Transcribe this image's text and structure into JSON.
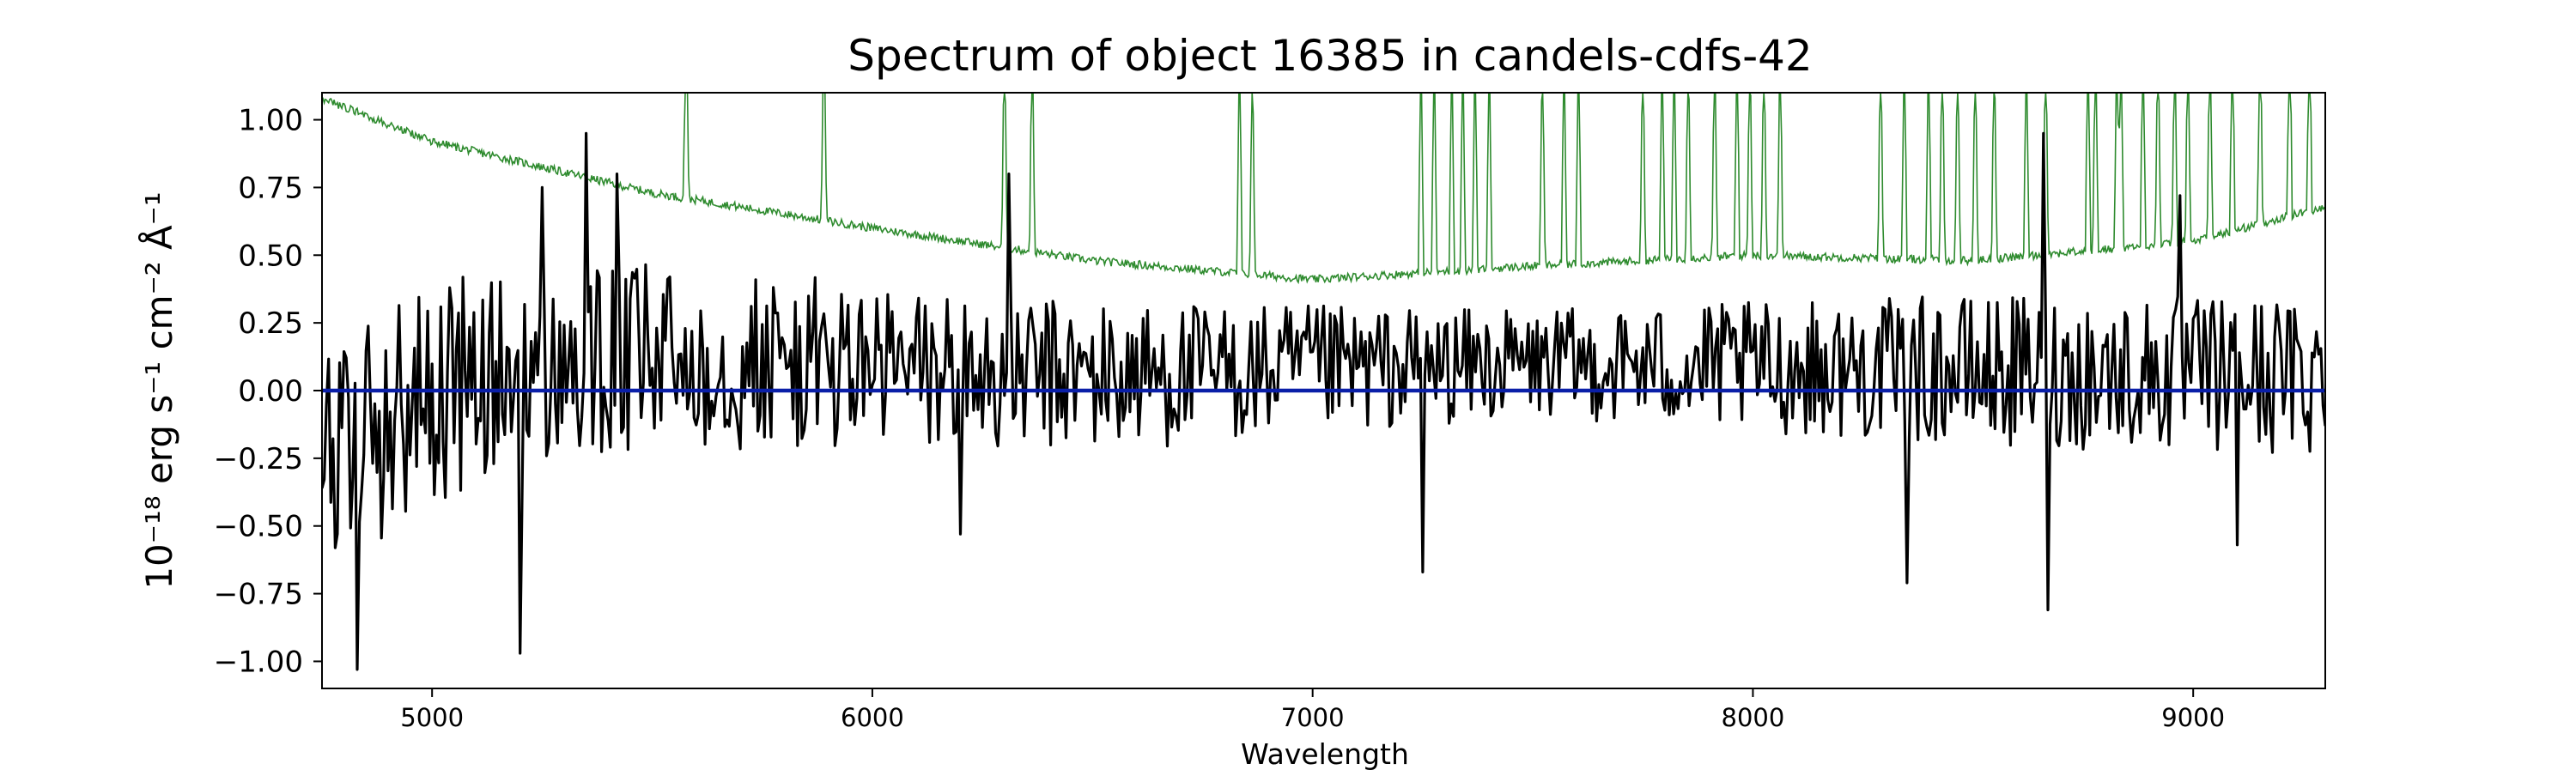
{
  "chart_data": {
    "type": "line",
    "title": "Spectrum of object 16385 in candels-cdfs-42",
    "xlabel": "Wavelength",
    "ylabel": "10⁻¹⁸ erg s⁻¹ cm⁻² Å⁻¹",
    "xlim": [
      4750,
      9300
    ],
    "ylim": [
      -1.1,
      1.1
    ],
    "x_ticks": [
      5000,
      6000,
      7000,
      8000,
      9000
    ],
    "x_tick_labels": [
      "5000",
      "6000",
      "7000",
      "8000",
      "9000"
    ],
    "y_ticks": [
      1.0,
      0.75,
      0.5,
      0.25,
      0.0,
      -0.25,
      -0.5,
      -0.75,
      -1.0
    ],
    "y_tick_labels": [
      "1.00",
      "0.75",
      "0.50",
      "0.25",
      "0.00",
      "−0.25",
      "−0.50",
      "−0.75",
      "−1.00"
    ],
    "grid": false,
    "series": [
      {
        "role": "flux",
        "color": "#000000",
        "noise_amplitude_by_wavelength": [
          {
            "x": 4750,
            "value": 0.45
          },
          {
            "x": 5500,
            "value": 0.35
          },
          {
            "x": 6500,
            "value": 0.28
          },
          {
            "x": 7500,
            "value": 0.2
          },
          {
            "x": 8500,
            "value": 0.28
          },
          {
            "x": 9300,
            "value": 0.3
          }
        ],
        "continuum": [
          {
            "x": 4750,
            "value": -0.25
          },
          {
            "x": 5000,
            "value": 0.0
          },
          {
            "x": 5500,
            "value": 0.12
          },
          {
            "x": 6500,
            "value": 0.05
          },
          {
            "x": 7500,
            "value": 0.1
          },
          {
            "x": 9300,
            "value": 0.05
          }
        ],
        "peaks": [
          {
            "x": 5250,
            "value": 0.75
          },
          {
            "x": 5350,
            "value": 0.95
          },
          {
            "x": 5420,
            "value": 0.8
          },
          {
            "x": 6310,
            "value": 0.8
          },
          {
            "x": 8660,
            "value": 0.95
          },
          {
            "x": 8970,
            "value": 0.72
          }
        ],
        "troughs": [
          {
            "x": 4830,
            "value": -1.03
          },
          {
            "x": 5200,
            "value": -0.97
          },
          {
            "x": 6200,
            "value": -0.53
          },
          {
            "x": 7250,
            "value": -0.67
          },
          {
            "x": 8350,
            "value": -0.71
          },
          {
            "x": 8670,
            "value": -0.81
          },
          {
            "x": 9100,
            "value": -0.57
          }
        ]
      },
      {
        "role": "error",
        "color": "#2e8b2e",
        "baseline": [
          {
            "x": 4750,
            "value": 1.08
          },
          {
            "x": 5000,
            "value": 0.92
          },
          {
            "x": 5500,
            "value": 0.73
          },
          {
            "x": 6000,
            "value": 0.6
          },
          {
            "x": 6500,
            "value": 0.48
          },
          {
            "x": 7000,
            "value": 0.41
          },
          {
            "x": 7500,
            "value": 0.46
          },
          {
            "x": 8000,
            "value": 0.5
          },
          {
            "x": 8500,
            "value": 0.48
          },
          {
            "x": 9000,
            "value": 0.55
          },
          {
            "x": 9300,
            "value": 0.68
          }
        ],
        "sky_lines": [
          5577,
          5890,
          6300,
          6363,
          6834,
          6863,
          7246,
          7276,
          7316,
          7341,
          7369,
          7401,
          7522,
          7571,
          7604,
          7750,
          7794,
          7821,
          7853,
          7913,
          7964,
          7993,
          8025,
          8062,
          8290,
          8344,
          8399,
          8430,
          8465,
          8505,
          8548,
          8621,
          8665,
          8761,
          8778,
          8827,
          8836,
          8886,
          8920,
          8958,
          8988,
          9038,
          9089,
          9152,
          9219,
          9264
        ]
      },
      {
        "role": "model",
        "color": "#0a1fa8",
        "values": [
          0.0
        ]
      }
    ]
  }
}
